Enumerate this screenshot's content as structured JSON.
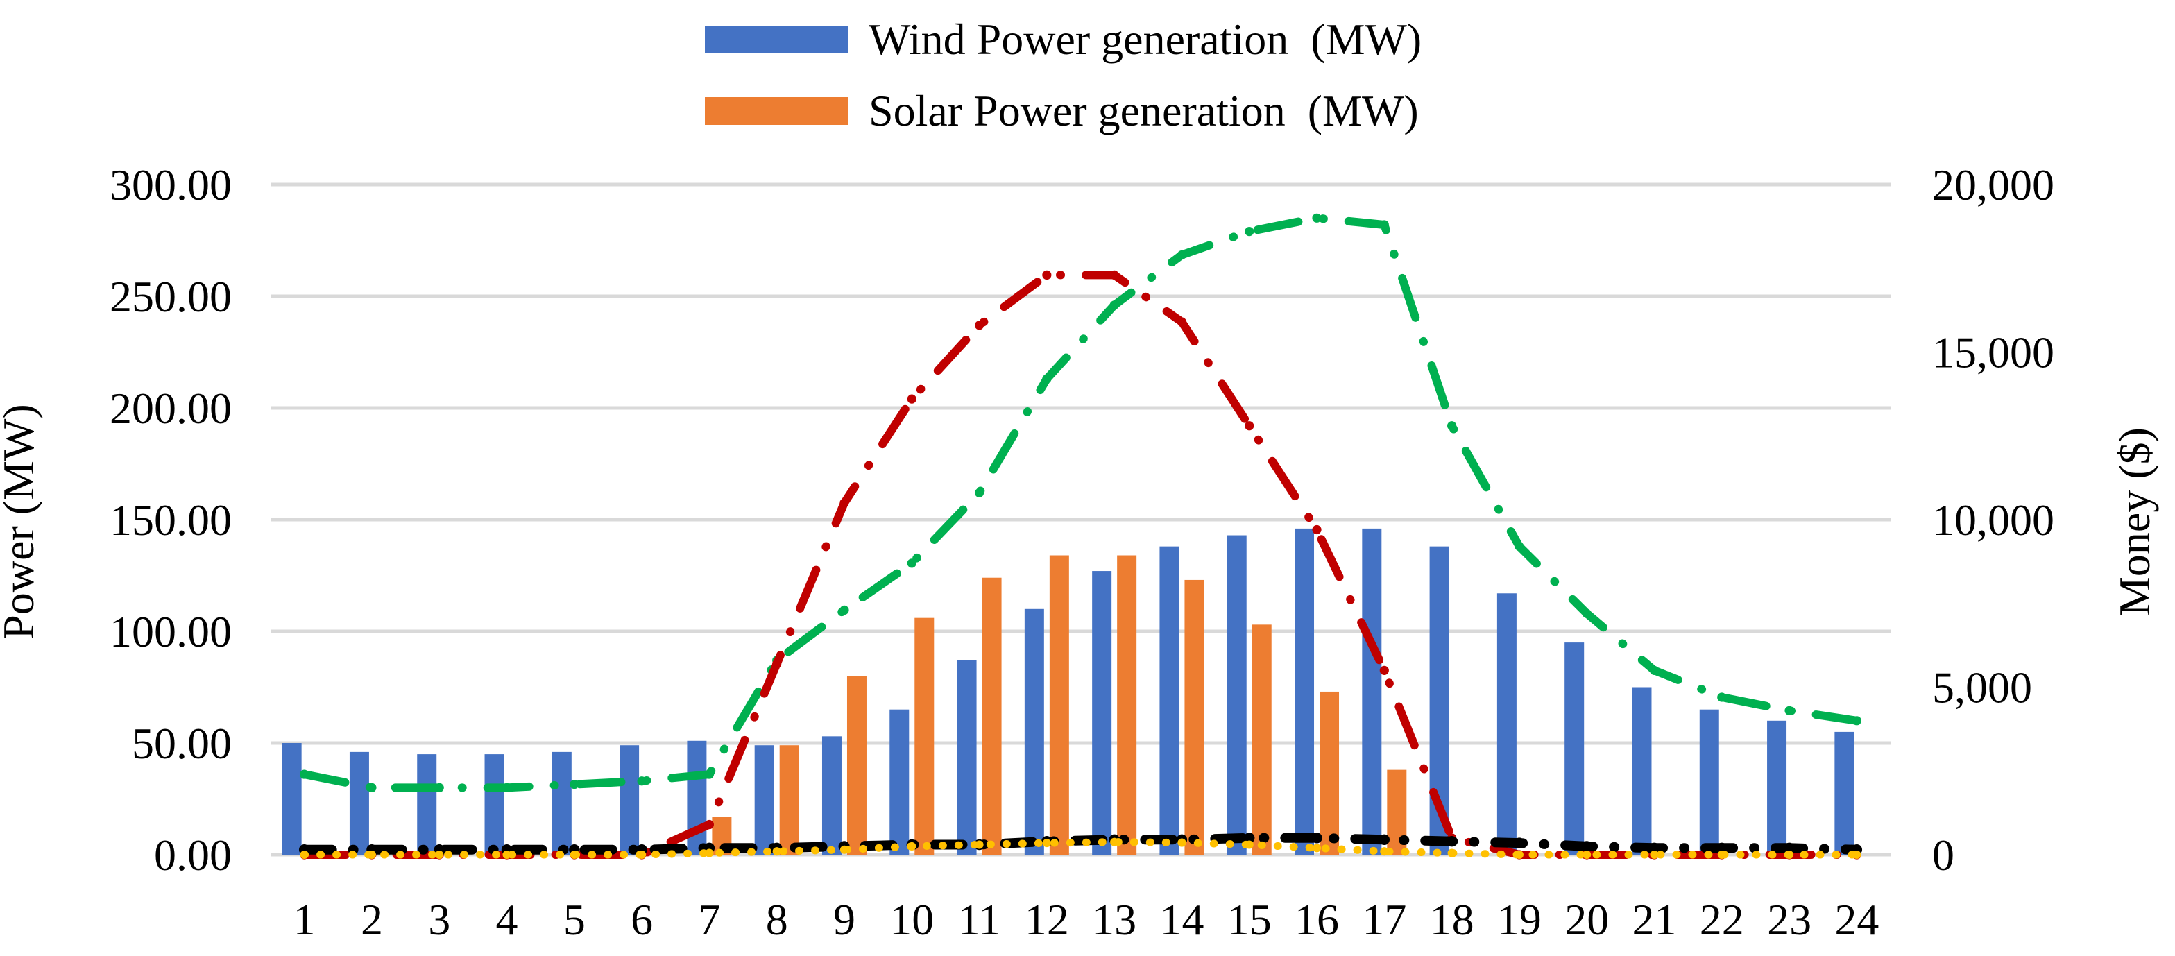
{
  "chart_data": {
    "type": "bar",
    "categories": [
      "1",
      "2",
      "3",
      "4",
      "5",
      "6",
      "7",
      "8",
      "9",
      "10",
      "11",
      "12",
      "13",
      "14",
      "15",
      "16",
      "17",
      "18",
      "19",
      "20",
      "21",
      "22",
      "23",
      "24"
    ],
    "series": [
      {
        "name": "Wind Power generation  (MW)",
        "color": "#4472C4",
        "axis": "left",
        "values": [
          50,
          46,
          45,
          45,
          46,
          49,
          51,
          49,
          53,
          65,
          87,
          110,
          127,
          138,
          143,
          146,
          146,
          138,
          117,
          95,
          75,
          65,
          60,
          55
        ]
      },
      {
        "name": "Solar Power generation  (MW)",
        "color": "#ED7D31",
        "axis": "left",
        "values": [
          0,
          0,
          0,
          0,
          0,
          0,
          17,
          49,
          80,
          106,
          124,
          134,
          134,
          123,
          103,
          73,
          38,
          0,
          0,
          0,
          0,
          0,
          0,
          0
        ]
      }
    ],
    "line_series": [
      {
        "name": "green-dash-dot",
        "color": "#00B050",
        "axis": "right",
        "values": [
          2400,
          2000,
          2000,
          2000,
          2100,
          2200,
          2400,
          5800,
          7300,
          8700,
          10800,
          14200,
          16400,
          17900,
          18600,
          19000,
          18800,
          12800,
          9200,
          7200,
          5500,
          4700,
          4300,
          4000
        ]
      },
      {
        "name": "red-dash-dot",
        "color": "#C00000",
        "axis": "right",
        "values": [
          0,
          0,
          0,
          0,
          0,
          0,
          900,
          5700,
          10500,
          13600,
          15800,
          17300,
          17300,
          15900,
          12800,
          9700,
          5500,
          500,
          0,
          0,
          0,
          0,
          0,
          0
        ]
      },
      {
        "name": "black-dash-dot",
        "color": "#000000",
        "axis": "right",
        "values": [
          150,
          150,
          150,
          150,
          150,
          150,
          200,
          200,
          250,
          300,
          300,
          400,
          450,
          450,
          500,
          500,
          450,
          400,
          350,
          250,
          200,
          200,
          200,
          150
        ]
      },
      {
        "name": "yellow-dotted",
        "color": "#FFC000",
        "axis": "right",
        "values": [
          0,
          0,
          0,
          0,
          0,
          0,
          50,
          100,
          150,
          250,
          300,
          350,
          380,
          360,
          300,
          200,
          100,
          50,
          0,
          0,
          0,
          0,
          0,
          0
        ]
      }
    ],
    "y_left": {
      "label": "Power (MW)",
      "range": [
        0,
        300
      ],
      "ticks": [
        "0.00",
        "50.00",
        "100.00",
        "150.00",
        "200.00",
        "250.00",
        "300.00"
      ]
    },
    "y_right": {
      "label": "Money ($)",
      "range": [
        0,
        20000
      ],
      "ticks": [
        "0",
        "5,000",
        "10,000",
        "15,000",
        "20,000"
      ]
    },
    "xlabel": "",
    "title": "",
    "grid": true,
    "legend_position": "top-center"
  }
}
